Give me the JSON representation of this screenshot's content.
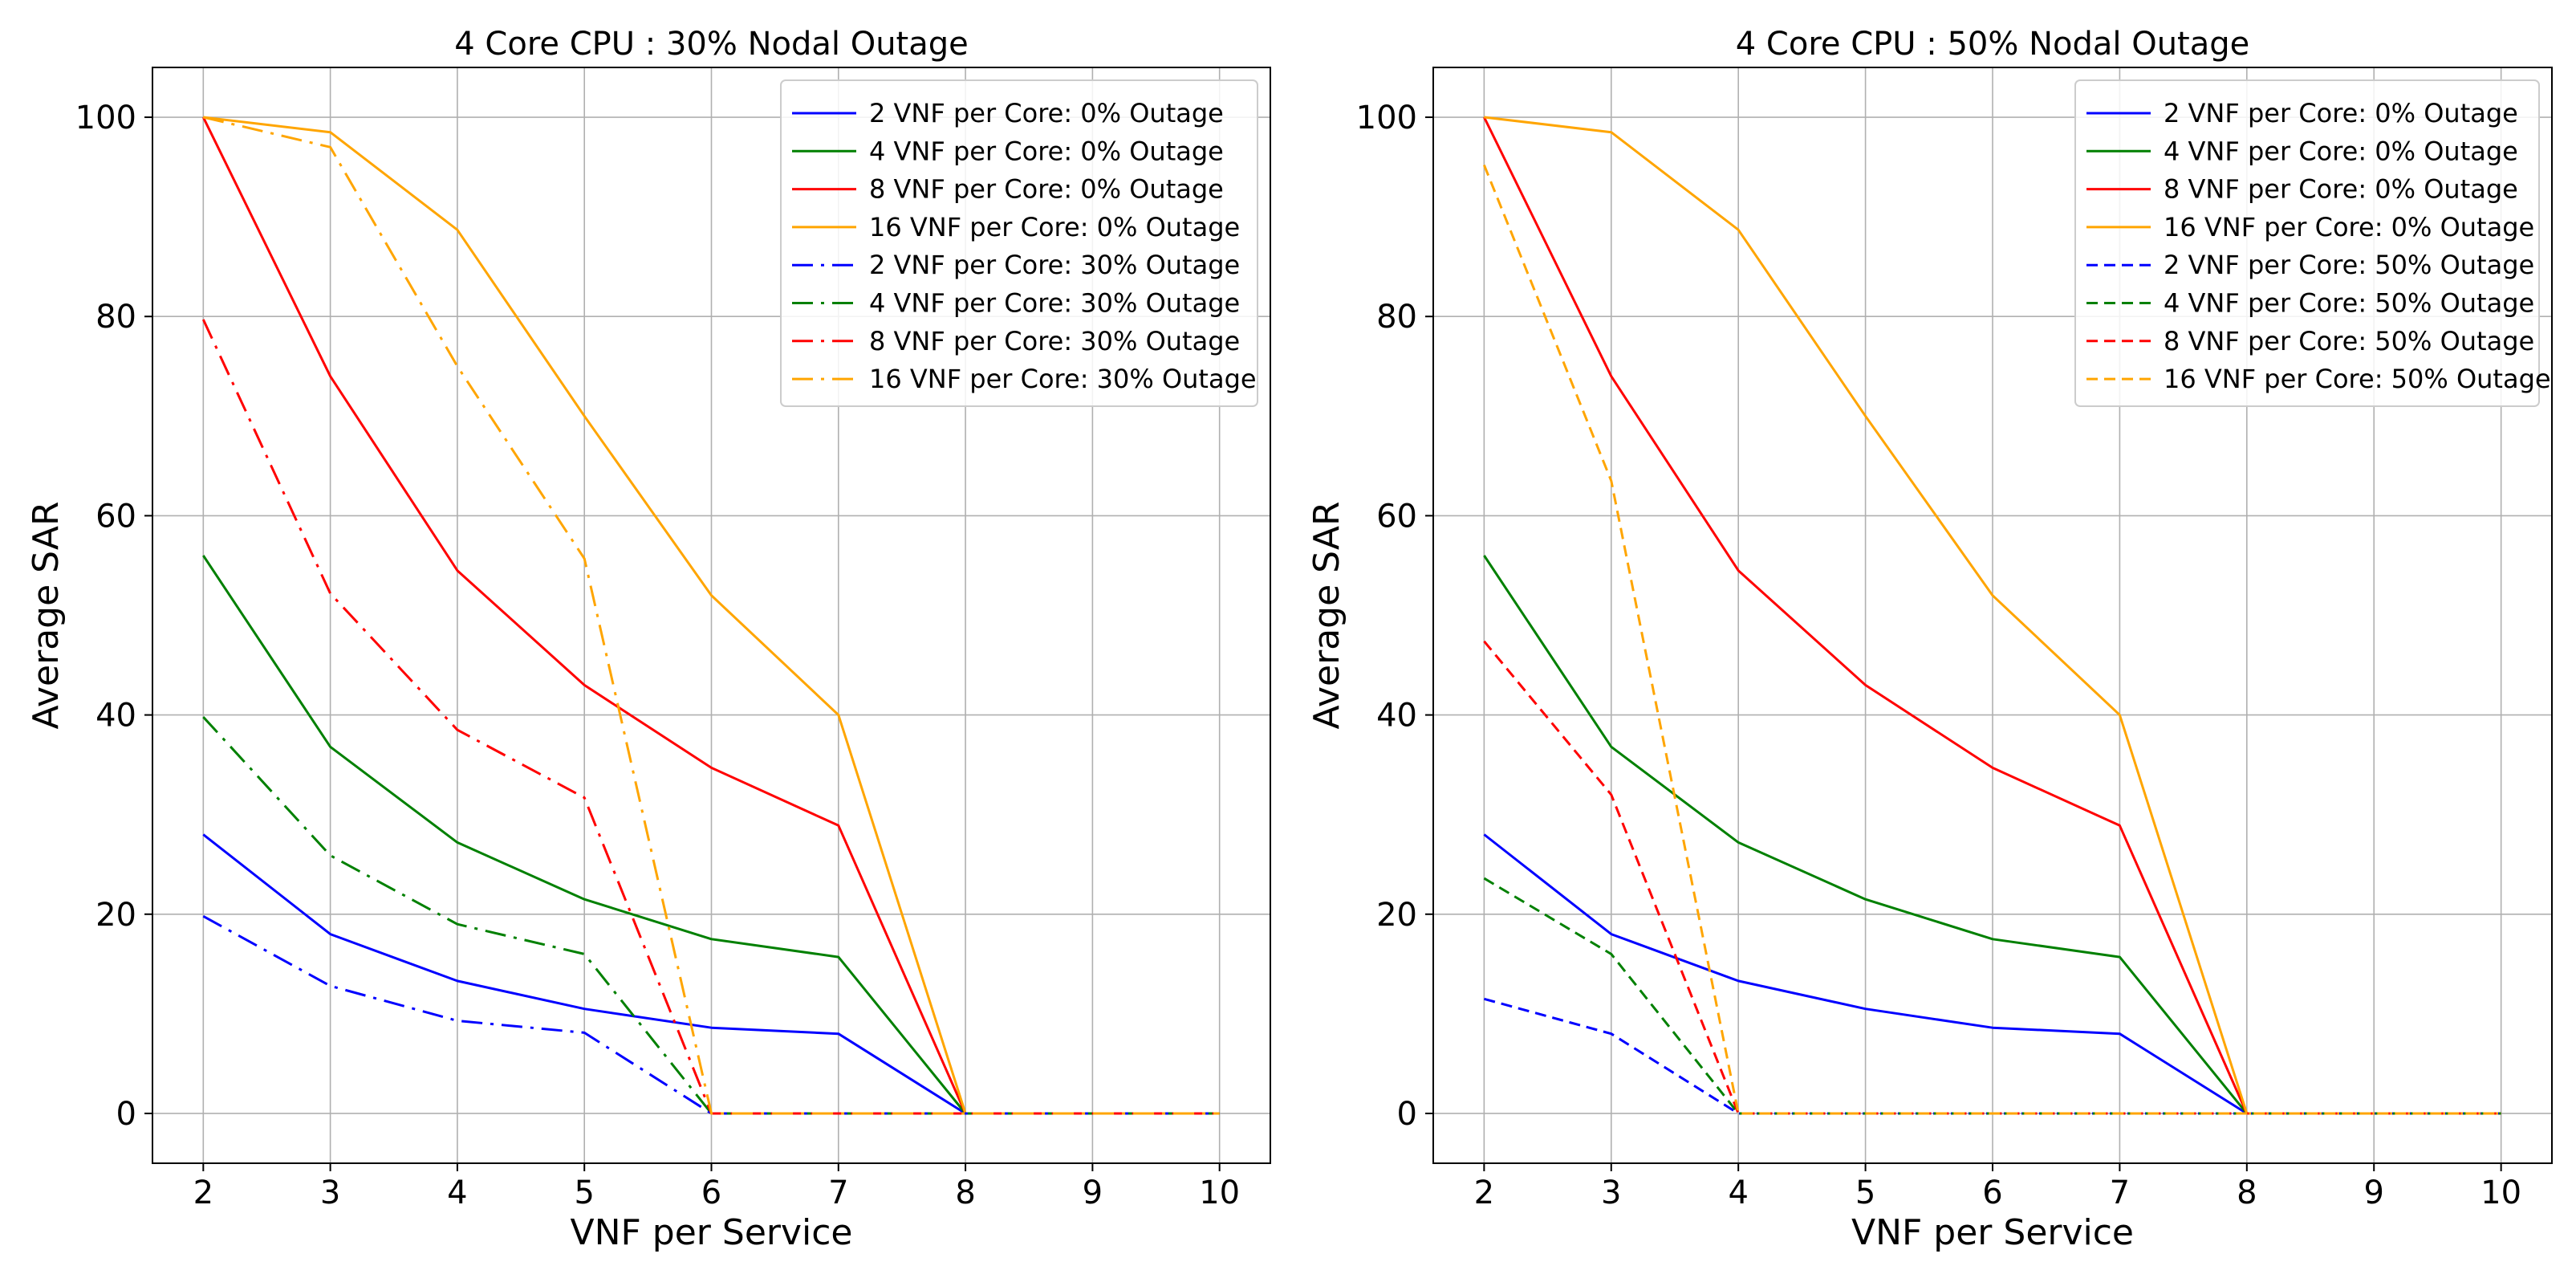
{
  "chart_data": [
    {
      "type": "line",
      "title": "4 Core CPU : 30% Nodal Outage",
      "xlabel": "VNF per Service",
      "ylabel": "Average SAR",
      "xlim": [
        1.6,
        10.4
      ],
      "ylim": [
        -5,
        105
      ],
      "xticks": [
        2,
        3,
        4,
        5,
        6,
        7,
        8,
        9,
        10
      ],
      "yticks": [
        0,
        20,
        40,
        60,
        80,
        100
      ],
      "grid": true,
      "legend_position": "top-right",
      "x": [
        2,
        3,
        4,
        5,
        6,
        7,
        8,
        9,
        10
      ],
      "series": [
        {
          "name": "2 VNF per Core: 0% Outage",
          "color": "#0000ff",
          "style": "solid",
          "values": [
            28,
            18,
            13.3,
            10.5,
            8.6,
            8,
            0,
            0,
            0
          ]
        },
        {
          "name": "4 VNF per Core: 0% Outage",
          "color": "#008000",
          "style": "solid",
          "values": [
            56,
            36.8,
            27.2,
            21.5,
            17.5,
            15.7,
            0,
            0,
            0
          ]
        },
        {
          "name": "8 VNF per Core: 0% Outage",
          "color": "#ff0000",
          "style": "solid",
          "values": [
            100,
            74,
            54.5,
            43,
            34.7,
            28.9,
            0,
            0,
            0
          ]
        },
        {
          "name": "16 VNF per Core: 0% Outage",
          "color": "#ffa500",
          "style": "solid",
          "values": [
            100,
            98.5,
            88.7,
            70,
            52,
            40,
            0,
            0,
            0
          ]
        },
        {
          "name": "2 VNF per Core: 30% Outage",
          "color": "#0000ff",
          "style": "dashdot",
          "values": [
            19.8,
            12.8,
            9.3,
            8.1,
            0,
            0,
            0,
            0,
            0
          ]
        },
        {
          "name": "4 VNF per Core: 30% Outage",
          "color": "#008000",
          "style": "dashdot",
          "values": [
            39.8,
            25.9,
            19,
            16,
            0,
            0,
            0,
            0,
            0
          ]
        },
        {
          "name": "8 VNF per Core: 30% Outage",
          "color": "#ff0000",
          "style": "dashdot",
          "values": [
            79.7,
            52.2,
            38.5,
            31.7,
            0,
            0,
            0,
            0,
            0
          ]
        },
        {
          "name": "16 VNF per Core: 30% Outage",
          "color": "#ffa500",
          "style": "dashdot",
          "values": [
            100,
            97,
            75,
            55.7,
            0,
            0,
            0,
            0,
            0
          ]
        }
      ]
    },
    {
      "type": "line",
      "title": "4 Core CPU : 50% Nodal Outage",
      "xlabel": "VNF per Service",
      "ylabel": "Average SAR",
      "xlim": [
        1.6,
        10.4
      ],
      "ylim": [
        -5,
        105
      ],
      "xticks": [
        2,
        3,
        4,
        5,
        6,
        7,
        8,
        9,
        10
      ],
      "yticks": [
        0,
        20,
        40,
        60,
        80,
        100
      ],
      "grid": true,
      "legend_position": "top-right",
      "x": [
        2,
        3,
        4,
        5,
        6,
        7,
        8,
        9,
        10
      ],
      "series": [
        {
          "name": "2 VNF per Core: 0% Outage",
          "color": "#0000ff",
          "style": "solid",
          "values": [
            28,
            18,
            13.3,
            10.5,
            8.6,
            8,
            0,
            0,
            0
          ]
        },
        {
          "name": "4 VNF per Core: 0% Outage",
          "color": "#008000",
          "style": "solid",
          "values": [
            56,
            36.8,
            27.2,
            21.5,
            17.5,
            15.7,
            0,
            0,
            0
          ]
        },
        {
          "name": "8 VNF per Core: 0% Outage",
          "color": "#ff0000",
          "style": "solid",
          "values": [
            100,
            74,
            54.5,
            43,
            34.7,
            28.9,
            0,
            0,
            0
          ]
        },
        {
          "name": "16 VNF per Core: 0% Outage",
          "color": "#ffa500",
          "style": "solid",
          "values": [
            100,
            98.5,
            88.7,
            70,
            52,
            40,
            0,
            0,
            0
          ]
        },
        {
          "name": "2 VNF per Core: 50% Outage",
          "color": "#0000ff",
          "style": "dashed",
          "values": [
            11.5,
            8,
            0,
            0,
            0,
            0,
            0,
            0,
            0
          ]
        },
        {
          "name": "4 VNF per Core: 50% Outage",
          "color": "#008000",
          "style": "dashed",
          "values": [
            23.6,
            16,
            0,
            0,
            0,
            0,
            0,
            0,
            0
          ]
        },
        {
          "name": "8 VNF per Core: 50% Outage",
          "color": "#ff0000",
          "style": "dashed",
          "values": [
            47.4,
            32,
            0,
            0,
            0,
            0,
            0,
            0,
            0
          ]
        },
        {
          "name": "16 VNF per Core: 50% Outage",
          "color": "#ffa500",
          "style": "dashed",
          "values": [
            95.2,
            63.5,
            0,
            0,
            0,
            0,
            0,
            0,
            0
          ]
        }
      ]
    }
  ]
}
